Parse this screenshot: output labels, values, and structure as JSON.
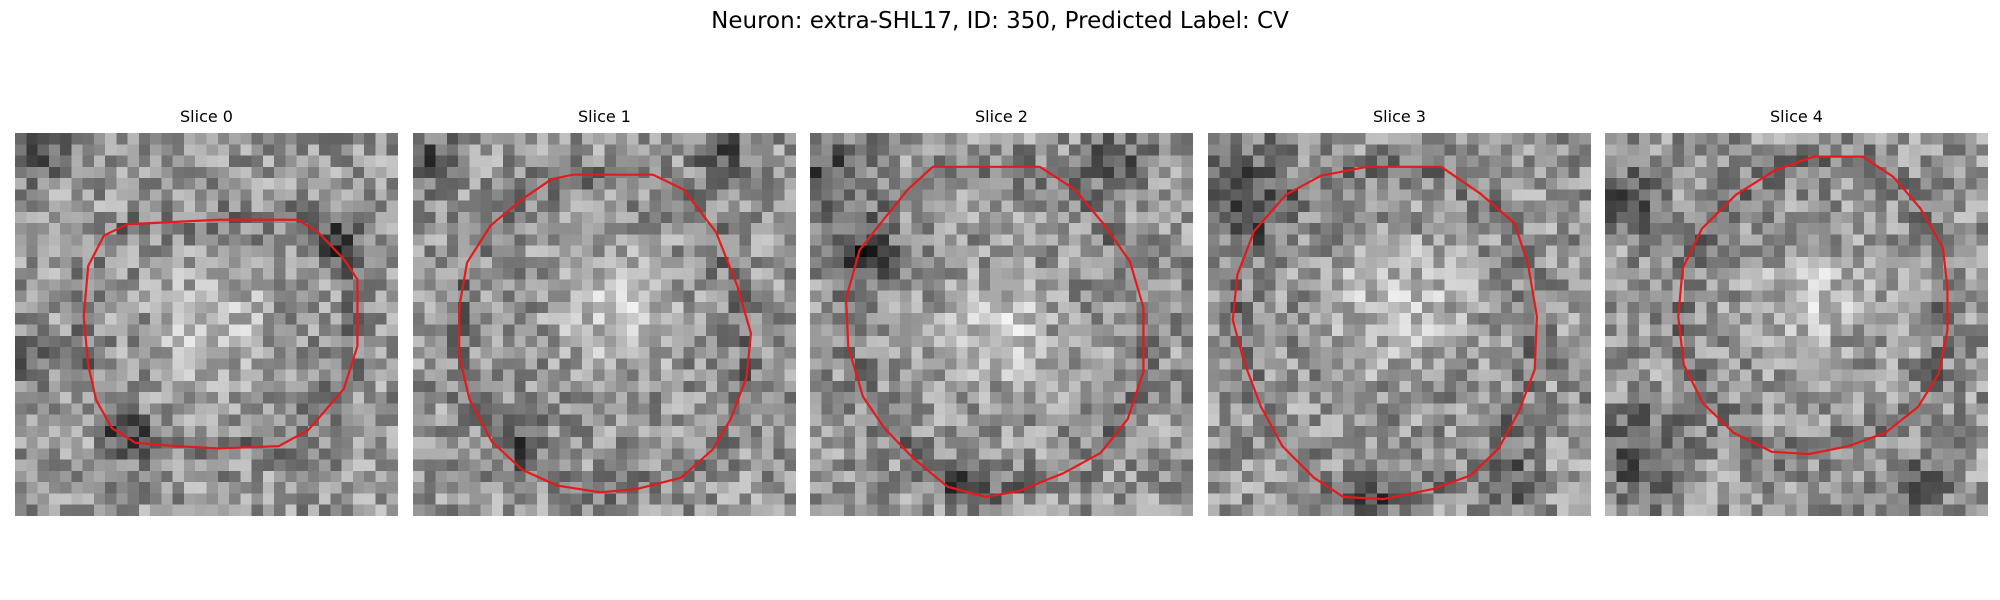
{
  "figure": {
    "title": "Neuron: extra-SHL17, ID: 350, Predicted Label: CV"
  },
  "contour_color": "#e41a1c",
  "panels": [
    {
      "title": "Slice 0",
      "outline": [
        [
          18.1,
          7.7
        ],
        [
          25.1,
          7.7
        ],
        [
          26.9,
          8.8
        ],
        [
          29.2,
          11.2
        ],
        [
          30.4,
          13.0
        ],
        [
          30.4,
          15.4
        ],
        [
          30.4,
          18.9
        ],
        [
          29.2,
          22.7
        ],
        [
          27.4,
          24.8
        ],
        [
          26.0,
          26.4
        ],
        [
          23.4,
          27.8
        ],
        [
          18.1,
          28.0
        ],
        [
          14.3,
          27.8
        ],
        [
          10.7,
          27.5
        ],
        [
          8.6,
          26.2
        ],
        [
          7.2,
          23.7
        ],
        [
          6.5,
          20.6
        ],
        [
          6.1,
          16.3
        ],
        [
          6.5,
          11.8
        ],
        [
          7.9,
          9.1
        ],
        [
          10.0,
          8.1
        ]
      ],
      "bright": [
        17.5,
        16.5,
        7.0
      ],
      "dark": [
        [
          10,
          27,
          0.5
        ],
        [
          28.5,
          9.5,
          0.5
        ],
        [
          2.5,
          2,
          0.5
        ],
        [
          1,
          20,
          0.4
        ]
      ]
    },
    {
      "title": "Slice 1",
      "outline": [
        [
          14.2,
          3.7
        ],
        [
          21.3,
          3.7
        ],
        [
          24.0,
          5.0
        ],
        [
          26.9,
          8.8
        ],
        [
          28.8,
          13.6
        ],
        [
          30.0,
          17.8
        ],
        [
          29.6,
          21.7
        ],
        [
          28.2,
          25.4
        ],
        [
          26.6,
          28.1
        ],
        [
          23.8,
          30.6
        ],
        [
          19.9,
          31.6
        ],
        [
          16.6,
          31.9
        ],
        [
          12.8,
          31.3
        ],
        [
          9.7,
          29.9
        ],
        [
          7.0,
          27.4
        ],
        [
          5.0,
          23.6
        ],
        [
          4.1,
          19.8
        ],
        [
          4.1,
          15.5
        ],
        [
          4.8,
          11.5
        ],
        [
          6.9,
          8.2
        ],
        [
          9.8,
          5.8
        ],
        [
          12.3,
          4.1
        ]
      ],
      "bright": [
        18,
        15.5,
        7.5
      ],
      "dark": [
        [
          2,
          2.5,
          0.6
        ],
        [
          10,
          27.5,
          0.4
        ],
        [
          27.5,
          1.5,
          0.5
        ]
      ]
    },
    {
      "title": "Slice 2",
      "outline": [
        [
          10.9,
          3.0
        ],
        [
          20.4,
          3.0
        ],
        [
          23.5,
          5.0
        ],
        [
          26.0,
          8.0
        ],
        [
          28.4,
          11.4
        ],
        [
          29.6,
          15.5
        ],
        [
          29.6,
          21.2
        ],
        [
          28.2,
          25.4
        ],
        [
          25.8,
          28.4
        ],
        [
          22.5,
          30.2
        ],
        [
          18.5,
          31.8
        ],
        [
          15.6,
          32.3
        ],
        [
          12.2,
          31.4
        ],
        [
          9.2,
          28.9
        ],
        [
          6.6,
          26.2
        ],
        [
          4.7,
          23.4
        ],
        [
          3.4,
          19.0
        ],
        [
          3.2,
          14.7
        ],
        [
          4.4,
          10.4
        ],
        [
          6.6,
          7.6
        ],
        [
          8.7,
          5.0
        ]
      ],
      "bright": [
        17,
        17.5,
        6.5
      ],
      "dark": [
        [
          1.5,
          4,
          1.2
        ],
        [
          5,
          11,
          0.8
        ],
        [
          27,
          2.5,
          0.7
        ],
        [
          14,
          31,
          0.5
        ]
      ]
    },
    {
      "title": "Slice 3",
      "outline": [
        [
          14.1,
          3.0
        ],
        [
          20.7,
          3.0
        ],
        [
          24.2,
          5.4
        ],
        [
          27.2,
          8.0
        ],
        [
          28.4,
          11.6
        ],
        [
          29.2,
          16.3
        ],
        [
          29.0,
          21.0
        ],
        [
          27.6,
          24.7
        ],
        [
          25.8,
          28.0
        ],
        [
          23.3,
          30.4
        ],
        [
          20.0,
          31.6
        ],
        [
          15.6,
          32.5
        ],
        [
          12.0,
          32.3
        ],
        [
          9.4,
          30.6
        ],
        [
          6.6,
          27.8
        ],
        [
          4.7,
          24.3
        ],
        [
          3.2,
          20.3
        ],
        [
          2.2,
          16.6
        ],
        [
          2.6,
          12.6
        ],
        [
          4.1,
          8.7
        ],
        [
          6.9,
          5.5
        ],
        [
          10.0,
          3.8
        ]
      ],
      "bright": [
        17,
        15.5,
        8.0
      ],
      "dark": [
        [
          2.5,
          5,
          1.4
        ],
        [
          14,
          33,
          0.6
        ],
        [
          27,
          31,
          0.5
        ]
      ]
    },
    {
      "title": "Slice 4",
      "outline": [
        [
          18.5,
          2.1
        ],
        [
          22.9,
          2.1
        ],
        [
          25.6,
          3.9
        ],
        [
          28.0,
          6.7
        ],
        [
          30.0,
          10.2
        ],
        [
          30.4,
          13.8
        ],
        [
          30.4,
          17.5
        ],
        [
          29.6,
          21.4
        ],
        [
          27.8,
          24.3
        ],
        [
          24.9,
          26.6
        ],
        [
          21.6,
          27.8
        ],
        [
          18.1,
          28.5
        ],
        [
          14.8,
          28.3
        ],
        [
          11.4,
          26.6
        ],
        [
          8.7,
          24.0
        ],
        [
          7.0,
          20.6
        ],
        [
          6.5,
          16.3
        ],
        [
          6.9,
          12.0
        ],
        [
          8.6,
          8.5
        ],
        [
          11.6,
          5.5
        ],
        [
          15.1,
          3.3
        ]
      ],
      "bright": [
        18.5,
        14.5,
        6.5
      ],
      "dark": [
        [
          3,
          28.5,
          1.2
        ],
        [
          2,
          6,
          0.7
        ],
        [
          28,
          31,
          0.6
        ]
      ]
    }
  ]
}
